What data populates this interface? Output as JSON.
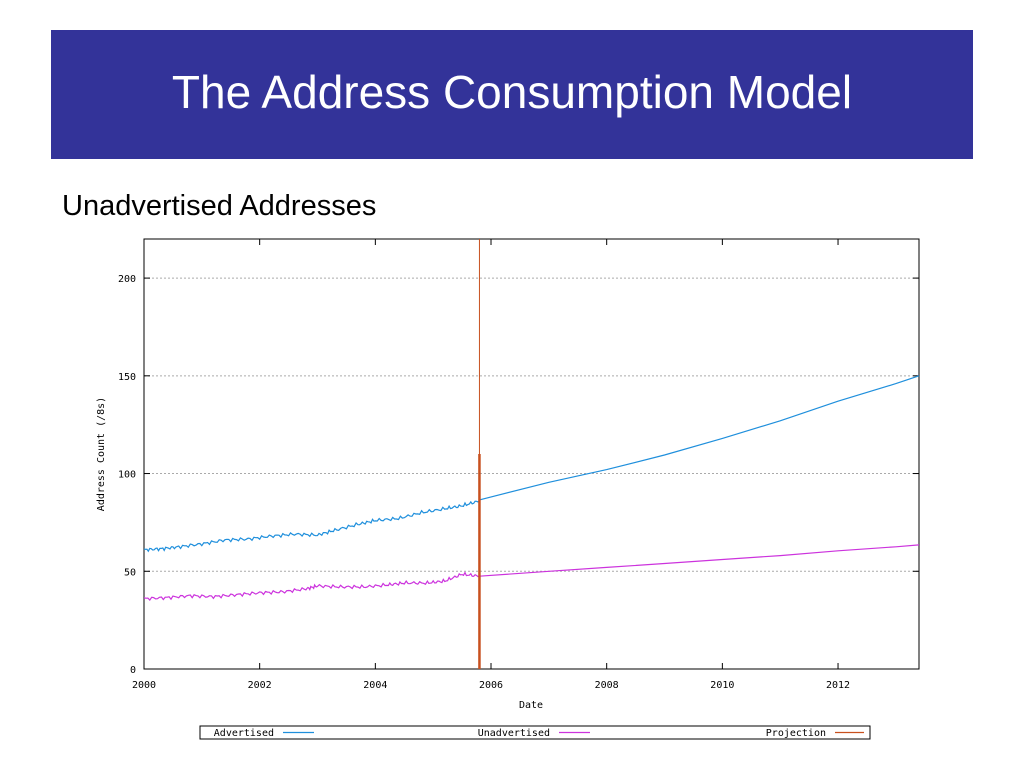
{
  "slide": {
    "title": "The Address Consumption Model",
    "subtitle": "Unadvertised Addresses",
    "title_bg": "#333399"
  },
  "chart_data": {
    "type": "line",
    "xlabel": "Date",
    "ylabel": "Address Count (/8s)",
    "xlim": [
      2000,
      2013.4
    ],
    "ylim": [
      0,
      220
    ],
    "xticks": [
      2000,
      2002,
      2004,
      2006,
      2008,
      2010,
      2012
    ],
    "yticks": [
      0,
      50,
      100,
      150,
      200
    ],
    "grid": true,
    "legend_placement": "bottom",
    "projection_x": 2005.8,
    "series": [
      {
        "name": "Advertised",
        "color": "#1f8fdc",
        "points": [
          [
            2000.0,
            61
          ],
          [
            2000.3,
            61.5
          ],
          [
            2000.6,
            62.5
          ],
          [
            2001.0,
            64
          ],
          [
            2001.4,
            66
          ],
          [
            2001.8,
            66.5
          ],
          [
            2002.2,
            68
          ],
          [
            2002.6,
            69
          ],
          [
            2003.0,
            68.5
          ],
          [
            2003.3,
            71
          ],
          [
            2003.7,
            74
          ],
          [
            2004.0,
            76
          ],
          [
            2004.4,
            77
          ],
          [
            2004.8,
            80
          ],
          [
            2005.2,
            82
          ],
          [
            2005.5,
            83.5
          ],
          [
            2005.8,
            86
          ]
        ]
      },
      {
        "name": "Unadvertised",
        "color": "#cc33dd",
        "points": [
          [
            2000.0,
            36
          ],
          [
            2000.4,
            36.5
          ],
          [
            2000.8,
            37.5
          ],
          [
            2001.2,
            37
          ],
          [
            2001.6,
            38
          ],
          [
            2002.0,
            39
          ],
          [
            2002.4,
            39.5
          ],
          [
            2002.8,
            41
          ],
          [
            2003.0,
            42.5
          ],
          [
            2003.4,
            42
          ],
          [
            2003.8,
            42
          ],
          [
            2004.2,
            43
          ],
          [
            2004.5,
            44
          ],
          [
            2004.9,
            44
          ],
          [
            2005.2,
            45
          ],
          [
            2005.5,
            48.5
          ],
          [
            2005.8,
            47.5
          ]
        ]
      },
      {
        "name": "Projection",
        "color": "#c8501e",
        "points": []
      }
    ],
    "projection_curves": [
      {
        "series": "Advertised",
        "color": "#1f8fdc",
        "points": [
          [
            2005.8,
            86.5
          ],
          [
            2007.0,
            95.5
          ],
          [
            2008.0,
            102
          ],
          [
            2009.0,
            109.5
          ],
          [
            2010.0,
            118
          ],
          [
            2011.0,
            127
          ],
          [
            2012.0,
            137
          ],
          [
            2013.0,
            146
          ],
          [
            2013.4,
            150
          ]
        ]
      },
      {
        "series": "Unadvertised",
        "color": "#cc33dd",
        "points": [
          [
            2005.8,
            47.5
          ],
          [
            2007.0,
            50
          ],
          [
            2008.0,
            52
          ],
          [
            2009.0,
            54
          ],
          [
            2010.0,
            56
          ],
          [
            2011.0,
            58
          ],
          [
            2012.0,
            60.5
          ],
          [
            2013.0,
            62.5
          ],
          [
            2013.4,
            63.5
          ]
        ]
      }
    ],
    "projection_bar_y": 110
  }
}
